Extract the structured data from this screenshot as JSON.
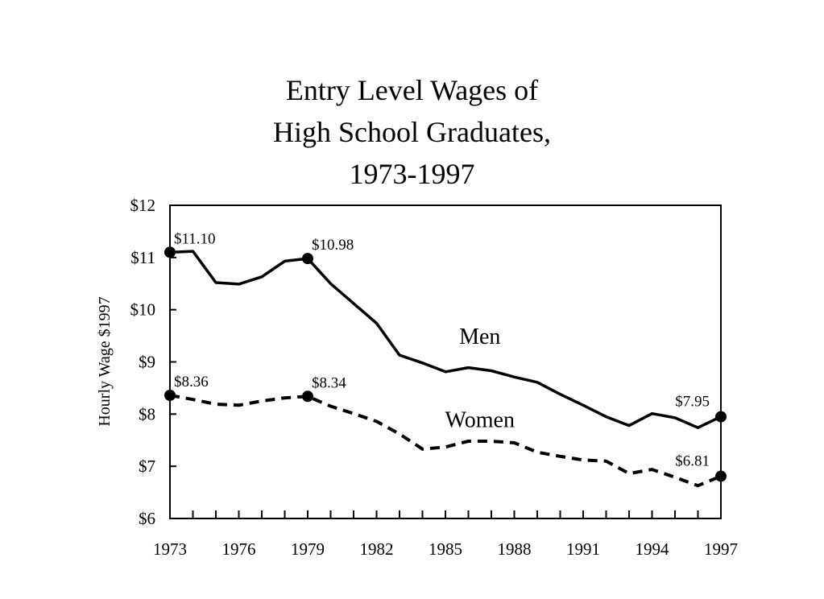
{
  "chart_data": {
    "type": "line",
    "title_lines": [
      "Entry Level Wages of",
      "High School Graduates,",
      "1973-1997"
    ],
    "xlabel": "",
    "ylabel": "Hourly Wage $1997",
    "xlim": [
      1973,
      1997
    ],
    "ylim": [
      6,
      12
    ],
    "y_ticks": [
      6,
      7,
      8,
      9,
      10,
      11,
      12
    ],
    "y_tick_labels": [
      "$6",
      "$7",
      "$8",
      "$9",
      "$10",
      "$11",
      "$12"
    ],
    "x_tick_labels": [
      "1973",
      "1976",
      "1979",
      "1982",
      "1985",
      "1988",
      "1991",
      "1994",
      "1997"
    ],
    "x_ticks": [
      1973,
      1976,
      1979,
      1982,
      1985,
      1988,
      1991,
      1994,
      1997
    ],
    "grid": false,
    "legend": "none",
    "series": [
      {
        "name": "Men",
        "style": "solid",
        "x": [
          1973,
          1974,
          1975,
          1976,
          1977,
          1978,
          1979,
          1980,
          1981,
          1982,
          1983,
          1984,
          1985,
          1986,
          1987,
          1988,
          1989,
          1990,
          1991,
          1992,
          1993,
          1994,
          1995,
          1996,
          1997
        ],
        "values": [
          11.1,
          11.12,
          10.52,
          10.49,
          10.63,
          10.93,
          10.98,
          10.5,
          10.12,
          9.74,
          9.13,
          8.98,
          8.81,
          8.89,
          8.83,
          8.71,
          8.61,
          8.38,
          8.17,
          7.95,
          7.78,
          8.01,
          7.93,
          7.74,
          7.95
        ]
      },
      {
        "name": "Women",
        "style": "dashed",
        "x": [
          1973,
          1974,
          1975,
          1976,
          1977,
          1978,
          1979,
          1980,
          1981,
          1982,
          1983,
          1984,
          1985,
          1986,
          1987,
          1988,
          1989,
          1990,
          1991,
          1992,
          1993,
          1994,
          1995,
          1996,
          1997
        ],
        "values": [
          8.36,
          8.28,
          8.19,
          8.17,
          8.25,
          8.31,
          8.34,
          8.15,
          8.01,
          7.86,
          7.62,
          7.33,
          7.37,
          7.48,
          7.48,
          7.45,
          7.27,
          7.19,
          7.12,
          7.1,
          6.86,
          6.94,
          6.79,
          6.63,
          6.81
        ]
      }
    ],
    "highlighted_points": [
      {
        "series": "Men",
        "x": 1973,
        "y": 11.1,
        "label": "$11.10"
      },
      {
        "series": "Men",
        "x": 1979,
        "y": 10.98,
        "label": "$10.98"
      },
      {
        "series": "Men",
        "x": 1997,
        "y": 7.95,
        "label": "$7.95"
      },
      {
        "series": "Women",
        "x": 1973,
        "y": 8.36,
        "label": "$8.36"
      },
      {
        "series": "Women",
        "x": 1979,
        "y": 8.34,
        "label": "$8.34"
      },
      {
        "series": "Women",
        "x": 1997,
        "y": 6.81,
        "label": "$6.81"
      }
    ],
    "series_labels": [
      {
        "text": "Men",
        "x": 1986.5,
        "y": 9.35
      },
      {
        "text": "Women",
        "x": 1986.5,
        "y": 7.75
      }
    ]
  }
}
